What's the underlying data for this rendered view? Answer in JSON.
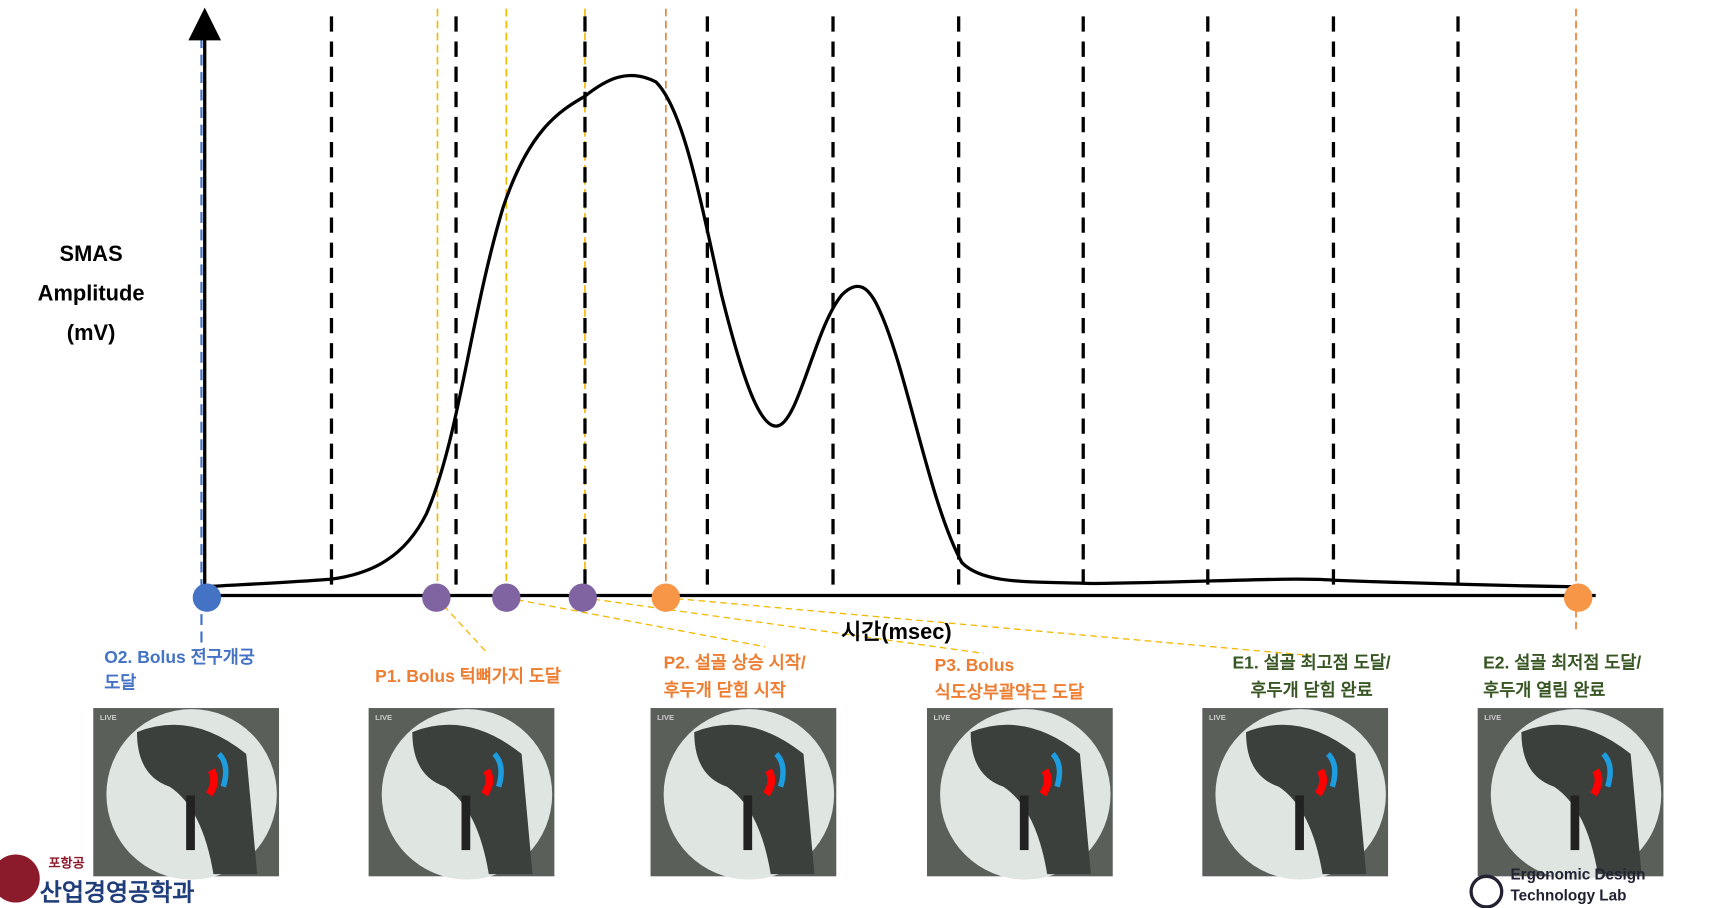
{
  "y_axis_label": [
    "SMAS",
    "Amplitude",
    "(mV)"
  ],
  "x_axis_label": "시간(msec)",
  "events": [
    {
      "label": [
        "O2. Bolus 전구개궁",
        "도달"
      ]
    },
    {
      "label": [
        "P1. Bolus 턱뼈가지 도달"
      ]
    },
    {
      "label": [
        "P2. 설골 상승 시작/",
        "후두개 닫힘 시작"
      ]
    },
    {
      "label": [
        "P3. Bolus",
        "식도상부괄약근 도달"
      ]
    },
    {
      "label": [
        "E1. 설골 최고점 도달/",
        "후두개 닫힘 완료"
      ]
    },
    {
      "label": [
        "E2. 설골 최저점 도달/",
        "후두개 열림 완료"
      ]
    }
  ],
  "image_tag": "LIVE",
  "logos": {
    "left": [
      "포항공",
      "산업경영공학과"
    ],
    "right": [
      "Ergonomic Design",
      "Technology Lab"
    ]
  }
}
